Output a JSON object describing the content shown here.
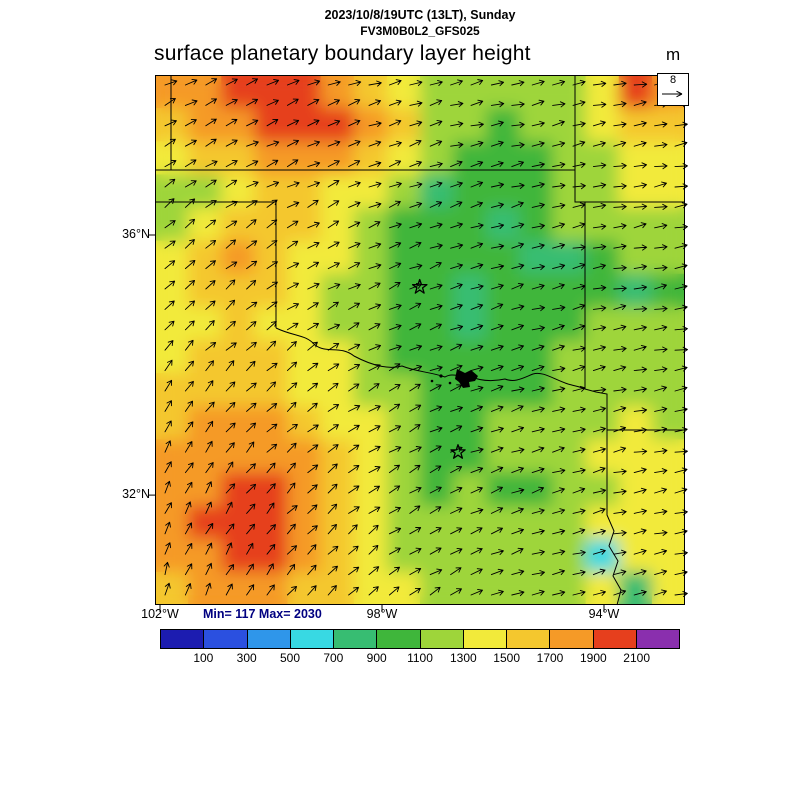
{
  "header": {
    "datetime_line": "2023/10/8/19UTC (13LT), Sunday",
    "model_line": "FV3M0B0L2_GFS025",
    "title": "surface planetary boundary layer height",
    "units": "m"
  },
  "map": {
    "min_max_label": "Min= 117 Max= 2030",
    "wind_reference_label": "8"
  },
  "colorbar": {
    "tick_labels": [
      "100",
      "300",
      "500",
      "700",
      "900",
      "1100",
      "1300",
      "1500",
      "1700",
      "1900",
      "2100"
    ]
  },
  "chart_data": {
    "type": "heatmap",
    "title": "surface planetary boundary layer height",
    "units": "m",
    "min": 117,
    "max": 2030,
    "levels": [
      100,
      300,
      500,
      700,
      900,
      1100,
      1300,
      1500,
      1700,
      1900,
      2100
    ],
    "palette": [
      "#1c1cb0",
      "#2b50e0",
      "#2f96ea",
      "#38d9e3",
      "#37bd72",
      "#3fb63b",
      "#9ed53a",
      "#f2ea3a",
      "#f4c72e",
      "#f59a27",
      "#e63f1d",
      "#8a2fae"
    ],
    "legend_position": "bottom",
    "grid_lines": false,
    "lon_w_range": [
      102.09,
      92.54
    ],
    "lat_n_range": [
      38.46,
      30.31
    ],
    "x_ticks": [
      {
        "label": "102°W",
        "lon_w": 102
      },
      {
        "label": "98°W",
        "lon_w": 98
      },
      {
        "label": "94°W",
        "lon_w": 94
      }
    ],
    "y_ticks": [
      {
        "label": "36°N",
        "lat_n": 36
      },
      {
        "label": "32°N",
        "lat_n": 32
      }
    ],
    "markers": [
      {
        "type": "star",
        "lon_w": 97.32,
        "lat_n": 35.2
      },
      {
        "type": "star",
        "lon_w": 96.63,
        "lat_n": 32.66
      }
    ],
    "grid": {
      "cols": 16,
      "rows": 16,
      "units": "m",
      "values": [
        [
          1750,
          1800,
          1950,
          2000,
          1900,
          1800,
          1600,
          1450,
          1200,
          1150,
          1100,
          1150,
          1100,
          1400,
          1900,
          1750
        ],
        [
          1600,
          1700,
          1850,
          1950,
          2030,
          1950,
          1800,
          1500,
          1250,
          1100,
          1050,
          1100,
          1150,
          1300,
          1600,
          1500
        ],
        [
          1450,
          1550,
          1650,
          1800,
          1850,
          1750,
          1550,
          1400,
          1150,
          1000,
          1000,
          1050,
          1100,
          1250,
          1450,
          1400
        ],
        [
          1150,
          1100,
          1300,
          1500,
          1550,
          1450,
          1350,
          1100,
          800,
          1000,
          950,
          1050,
          1100,
          1200,
          1350,
          1300
        ],
        [
          1250,
          1350,
          1500,
          1600,
          1500,
          1400,
          1250,
          1050,
          950,
          900,
          750,
          1000,
          1100,
          1150,
          1250,
          1200
        ],
        [
          1400,
          1600,
          1750,
          1650,
          1450,
          1300,
          1150,
          1000,
          950,
          900,
          950,
          700,
          800,
          1000,
          1150,
          1100
        ],
        [
          1350,
          1550,
          1650,
          1550,
          1400,
          1250,
          1100,
          1000,
          900,
          850,
          900,
          950,
          1000,
          1050,
          800,
          1050
        ],
        [
          1400,
          1450,
          1550,
          1450,
          1350,
          1200,
          1100,
          950,
          900,
          850,
          900,
          950,
          1050,
          1100,
          1150,
          1100
        ],
        [
          1450,
          1500,
          1550,
          1500,
          1400,
          1300,
          1200,
          1050,
          950,
          900,
          950,
          1000,
          1100,
          1150,
          1200,
          1150
        ],
        [
          1500,
          1550,
          1600,
          1550,
          1450,
          1350,
          1250,
          1100,
          1000,
          950,
          1000,
          1050,
          1150,
          1200,
          1250,
          1200
        ],
        [
          1600,
          1700,
          1750,
          1700,
          1600,
          1450,
          1300,
          1150,
          1000,
          1000,
          1100,
          1150,
          1200,
          1250,
          1300,
          1250
        ],
        [
          1700,
          1800,
          1850,
          1800,
          1700,
          1500,
          1350,
          1150,
          1000,
          1050,
          1100,
          1150,
          1250,
          1300,
          1350,
          1300
        ],
        [
          1750,
          1850,
          1950,
          1900,
          1800,
          1600,
          1400,
          1200,
          1050,
          1100,
          1050,
          1050,
          1100,
          1250,
          1400,
          1350
        ],
        [
          1800,
          1900,
          2030,
          1950,
          1850,
          1650,
          1450,
          1250,
          1100,
          1150,
          1100,
          1100,
          1150,
          1300,
          1450,
          1400
        ],
        [
          1750,
          1850,
          1950,
          1900,
          1750,
          1550,
          1400,
          1250,
          1150,
          1200,
          1150,
          1150,
          1200,
          600,
          1350,
          1400
        ],
        [
          1650,
          1750,
          1800,
          1750,
          1650,
          1500,
          1400,
          1300,
          1200,
          1250,
          1200,
          1200,
          1250,
          1300,
          700,
          1350
        ]
      ]
    }
  }
}
